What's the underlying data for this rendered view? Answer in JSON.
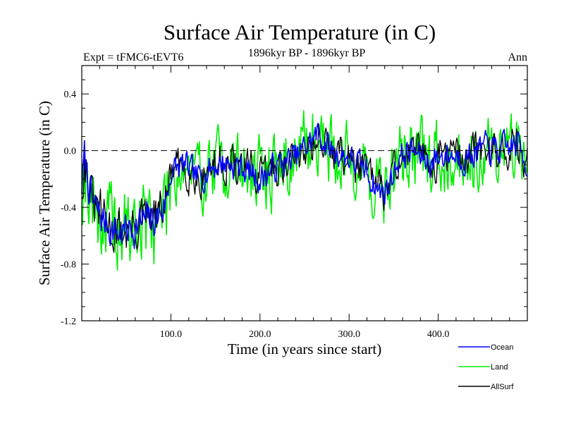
{
  "chart_data": {
    "type": "line",
    "title": "Surface Air Temperature (in C)",
    "subtitle_left": "Expt = tFMC6-tEVT6",
    "subtitle_center": "1896kyr BP - 1896kyr BP",
    "subtitle_right": "Ann",
    "xlabel": "Time (in years since start)",
    "ylabel": "Surface Air Temperature (in C)",
    "xlim": [
      0,
      500
    ],
    "ylim": [
      -1.2,
      0.6
    ],
    "xticks": [
      {
        "value": 100,
        "label": "100.0"
      },
      {
        "value": 200,
        "label": "200.0"
      },
      {
        "value": 300,
        "label": "300.0"
      },
      {
        "value": 400,
        "label": "400.0"
      }
    ],
    "yticks": [
      {
        "value": -1.2,
        "label": "-1.2"
      },
      {
        "value": -0.8,
        "label": "-0.8"
      },
      {
        "value": -0.4,
        "label": "-0.4"
      },
      {
        "value": 0.0,
        "label": "0.0"
      },
      {
        "value": 0.4,
        "label": "0.4"
      }
    ],
    "reference_line": 0.0,
    "legend_position": "bottom-right",
    "series_trends": {
      "x": [
        0,
        3,
        12,
        25,
        40,
        55,
        70,
        85,
        95,
        100,
        115,
        130,
        145,
        160,
        180,
        200,
        220,
        240,
        255,
        265,
        280,
        300,
        320,
        335,
        345,
        355,
        370,
        390,
        410,
        430,
        450,
        470,
        490,
        500
      ],
      "values": [
        -0.25,
        -0.05,
        -0.38,
        -0.5,
        -0.58,
        -0.55,
        -0.5,
        -0.48,
        -0.35,
        -0.15,
        -0.1,
        -0.2,
        -0.12,
        -0.08,
        -0.12,
        -0.2,
        -0.1,
        -0.05,
        0.05,
        0.12,
        0.0,
        -0.05,
        -0.15,
        -0.3,
        -0.25,
        -0.05,
        0.0,
        -0.08,
        -0.02,
        -0.05,
        0.02,
        0.0,
        0.05,
        -0.1
      ]
    },
    "series": [
      {
        "name": "Ocean",
        "color": "#0000ff",
        "noise": 0.09,
        "seed": 7
      },
      {
        "name": "Land",
        "color": "#00ee00",
        "noise": 0.22,
        "seed": 19
      },
      {
        "name": "AllSurf",
        "color": "#000000",
        "noise": 0.12,
        "seed": 31
      }
    ]
  }
}
